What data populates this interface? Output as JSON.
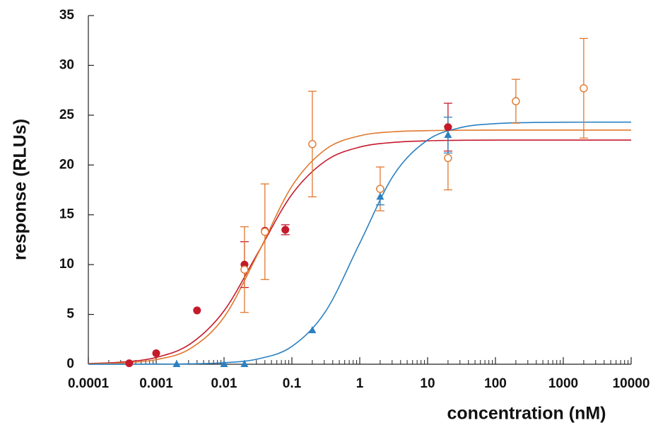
{
  "chart_data": {
    "type": "scatter",
    "xlog": true,
    "xlabel": "concentration (nM)",
    "ylabel": "response (RLUs)",
    "xlim": [
      0.0001,
      10000
    ],
    "xticks": [
      0.0001,
      0.001,
      0.01,
      0.1,
      1,
      10,
      100,
      1000,
      10000
    ],
    "minor_xticks": [
      0.0002,
      0.0003,
      0.0004,
      0.0005,
      0.0006,
      0.0007,
      0.0008,
      0.0009,
      0.002,
      0.003,
      0.004,
      0.005,
      0.006,
      0.007,
      0.008,
      0.009,
      0.02,
      0.03,
      0.04,
      0.05,
      0.06,
      0.07,
      0.08,
      0.09,
      0.2,
      0.3,
      0.4,
      0.5,
      0.6,
      0.7,
      0.8,
      0.9,
      2,
      3,
      4,
      5,
      6,
      7,
      8,
      9,
      20,
      30,
      40,
      50,
      60,
      70,
      80,
      90,
      200,
      300,
      400,
      500,
      600,
      700,
      800,
      900,
      2000,
      3000,
      4000,
      5000,
      6000,
      7000,
      8000,
      9000
    ],
    "ylim": [
      0,
      35
    ],
    "yticks": [
      0,
      5,
      10,
      15,
      20,
      25,
      30,
      35
    ],
    "series": [
      {
        "color": "#c41a2c",
        "marker": "filled-circle",
        "x": [
          0.0004,
          0.001,
          0.004,
          0.02,
          0.04,
          0.08,
          20
        ],
        "values": [
          0.1,
          1.1,
          5.4,
          10.0,
          13.4,
          13.5,
          23.8
        ],
        "errors": [
          null,
          null,
          null,
          2.3,
          null,
          0.5,
          2.4
        ]
      },
      {
        "color": "#e0782e",
        "marker": "open-circle",
        "x": [
          0.02,
          0.04,
          0.2,
          2,
          20,
          200,
          2000
        ],
        "values": [
          9.5,
          13.3,
          22.1,
          17.6,
          20.7,
          26.4,
          27.7
        ],
        "errors": [
          4.3,
          4.8,
          5.3,
          2.2,
          3.2,
          2.2,
          5.0
        ]
      },
      {
        "color": "#2a80c2",
        "marker": "triangle",
        "x": [
          0.002,
          0.01,
          0.02,
          0.2,
          2,
          20
        ],
        "values": [
          0,
          0,
          0,
          3.4,
          16.8,
          23.0
        ],
        "errors": [
          null,
          null,
          null,
          null,
          0.8,
          1.8
        ]
      }
    ],
    "curves": [
      {
        "color": "#c41a2c",
        "x": [
          0.0001,
          0.000316,
          0.001,
          0.00316,
          0.01,
          0.0316,
          0.1,
          0.316,
          1,
          3.16,
          10,
          31.6,
          100,
          316,
          1000,
          3160,
          10000
        ],
        "values": [
          0.07,
          0.22,
          0.68,
          2.03,
          5.36,
          11.19,
          17.05,
          20.43,
          21.8,
          22.27,
          22.43,
          22.48,
          22.5,
          22.5,
          22.5,
          22.5,
          22.5
        ]
      },
      {
        "color": "#e0782e",
        "x": [
          0.0001,
          0.000316,
          0.001,
          0.00316,
          0.01,
          0.0316,
          0.1,
          0.316,
          1,
          3.16,
          10,
          31.6,
          100,
          316,
          1000,
          3160,
          10000
        ],
        "values": [
          0.04,
          0.13,
          0.46,
          1.56,
          4.73,
          11.1,
          17.87,
          21.58,
          22.93,
          23.34,
          23.45,
          23.49,
          23.5,
          23.5,
          23.5,
          23.5,
          23.5
        ]
      },
      {
        "color": "#2a80c2",
        "x": [
          0.0001,
          0.000316,
          0.001,
          0.00316,
          0.01,
          0.0316,
          0.1,
          0.316,
          1,
          3.16,
          10,
          31.6,
          100,
          316,
          1000,
          3160,
          10000
        ],
        "values": [
          0,
          0.003,
          0.012,
          0.04,
          0.15,
          0.53,
          1.79,
          5.34,
          12.15,
          18.98,
          22.5,
          23.77,
          24.15,
          24.26,
          24.29,
          24.3,
          24.3
        ]
      }
    ]
  }
}
